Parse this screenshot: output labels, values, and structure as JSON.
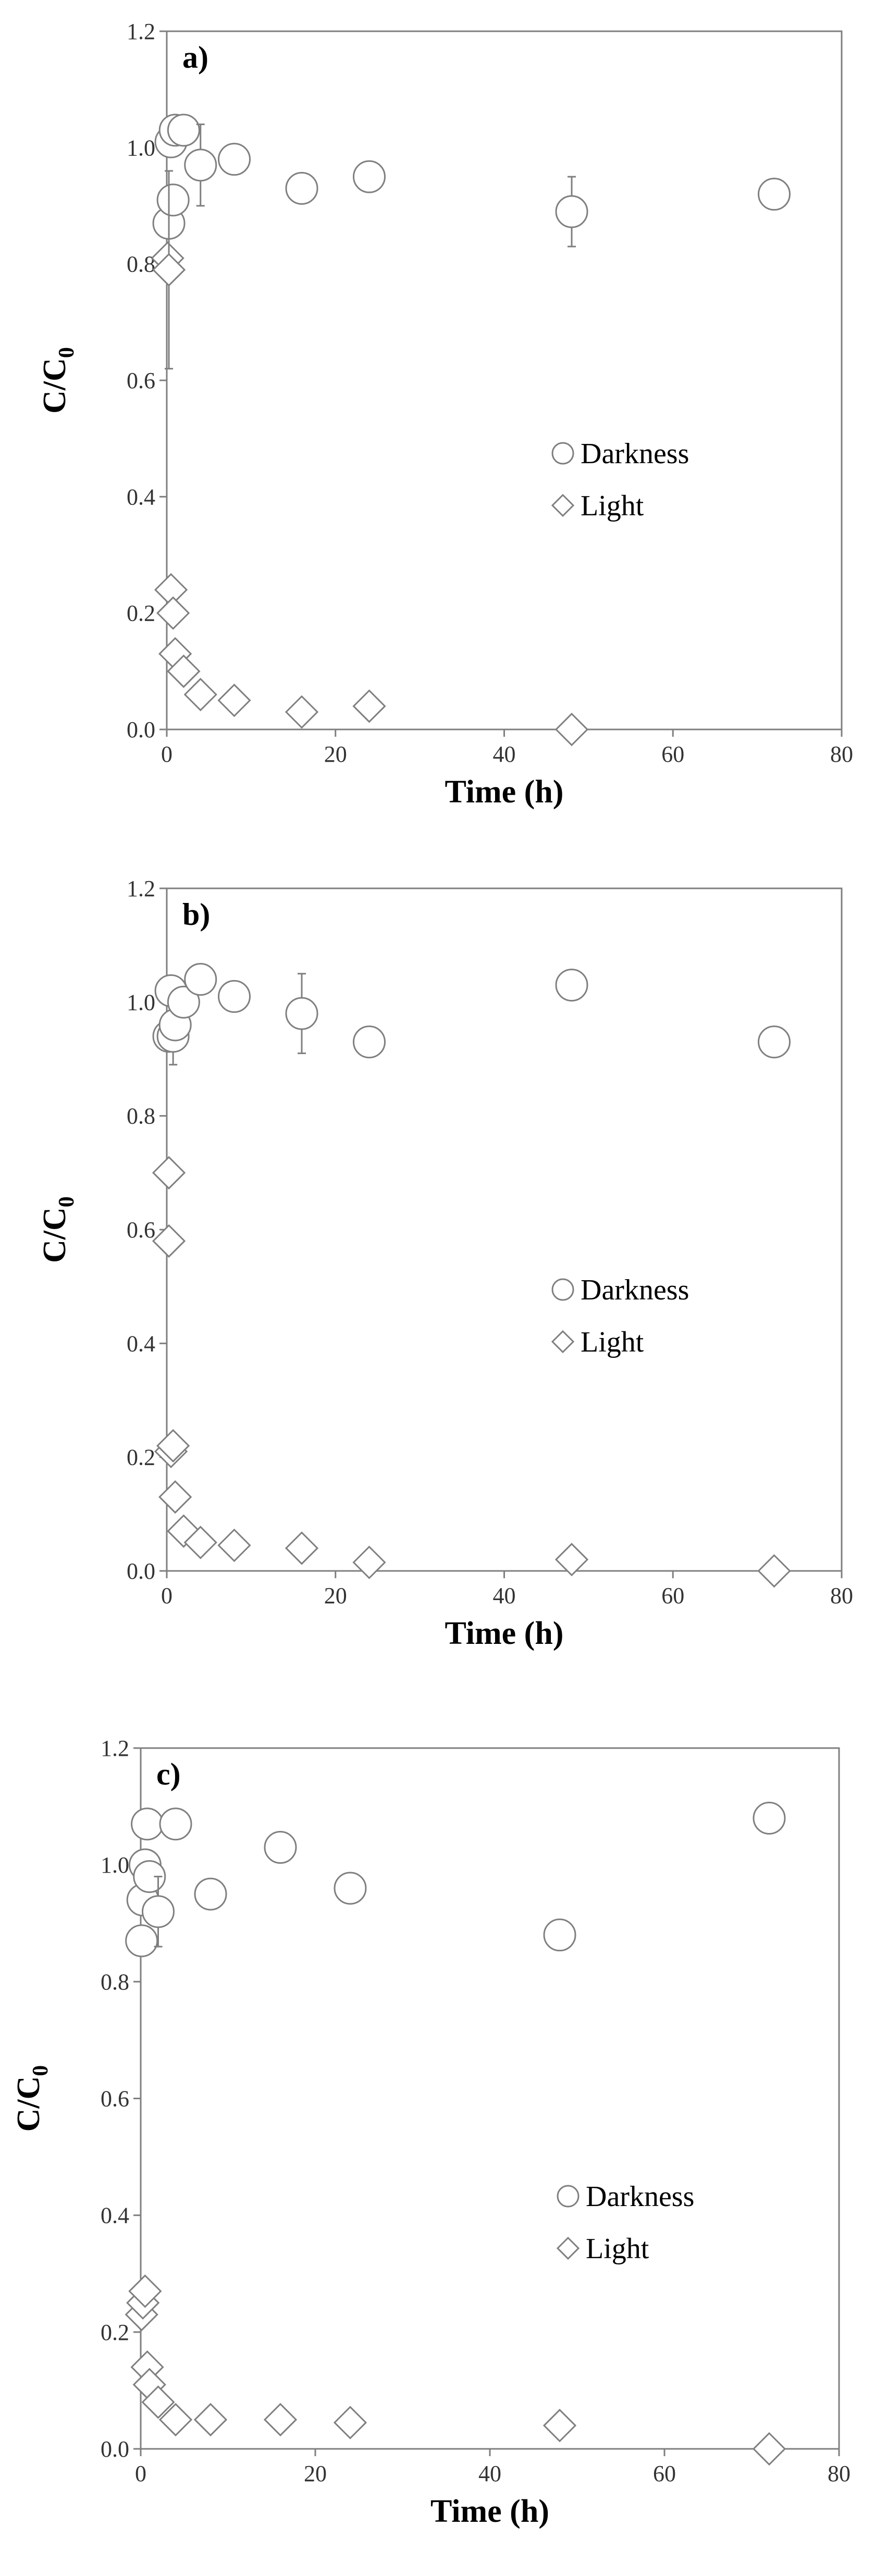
{
  "colors": {
    "marker_stroke": "#7f7f7f",
    "marker_fill": "#ffffff",
    "axis": "#7f7f7f",
    "text": "#000000"
  },
  "chart_data": [
    {
      "type": "scatter",
      "panel_label": "a)",
      "xlabel": "Time (h)",
      "ylabel_main": "C/C",
      "ylabel_sub": "0",
      "xlim": [
        0,
        80
      ],
      "ylim": [
        0,
        1.2
      ],
      "xticks": [
        "0",
        "20",
        "40",
        "60",
        "80"
      ],
      "yticks": [
        "0.0",
        "0.2",
        "0.4",
        "0.6",
        "0.8",
        "1.0",
        "1.2"
      ],
      "legend_position": "center-right",
      "grid": false,
      "series": [
        {
          "name": "Darkness",
          "marker": "circle",
          "points": [
            {
              "x": 0.25,
              "y": 0.87
            },
            {
              "x": 0.5,
              "y": 1.01
            },
            {
              "x": 0.75,
              "y": 0.91
            },
            {
              "x": 1,
              "y": 1.03
            },
            {
              "x": 2,
              "y": 1.03
            },
            {
              "x": 4,
              "y": 0.97,
              "err": 0.07
            },
            {
              "x": 8,
              "y": 0.98
            },
            {
              "x": 16,
              "y": 0.93
            },
            {
              "x": 24,
              "y": 0.95
            },
            {
              "x": 48,
              "y": 0.89,
              "err": 0.06
            },
            {
              "x": 72,
              "y": 0.92
            }
          ]
        },
        {
          "name": "Light",
          "marker": "diamond",
          "points": [
            {
              "x": 0.1,
              "y": 0.81
            },
            {
              "x": 0.25,
              "y": 0.79,
              "err": 0.17
            },
            {
              "x": 0.5,
              "y": 0.24
            },
            {
              "x": 0.75,
              "y": 0.2
            },
            {
              "x": 1,
              "y": 0.13
            },
            {
              "x": 2,
              "y": 0.1
            },
            {
              "x": 4,
              "y": 0.06
            },
            {
              "x": 8,
              "y": 0.05
            },
            {
              "x": 16,
              "y": 0.03
            },
            {
              "x": 24,
              "y": 0.04
            },
            {
              "x": 48,
              "y": 0.0
            }
          ]
        }
      ]
    },
    {
      "type": "scatter",
      "panel_label": "b)",
      "xlabel": "Time (h)",
      "ylabel_main": "C/C",
      "ylabel_sub": "0",
      "xlim": [
        0,
        80
      ],
      "ylim": [
        0,
        1.2
      ],
      "xticks": [
        "0",
        "20",
        "40",
        "60",
        "80"
      ],
      "yticks": [
        "0.0",
        "0.2",
        "0.4",
        "0.6",
        "0.8",
        "1.0",
        "1.2"
      ],
      "legend_position": "center-right",
      "grid": false,
      "series": [
        {
          "name": "Darkness",
          "marker": "circle",
          "points": [
            {
              "x": 0.25,
              "y": 0.94
            },
            {
              "x": 0.5,
              "y": 1.02
            },
            {
              "x": 0.75,
              "y": 0.94,
              "err": 0.05
            },
            {
              "x": 1,
              "y": 0.96
            },
            {
              "x": 2,
              "y": 1.0
            },
            {
              "x": 4,
              "y": 1.04
            },
            {
              "x": 8,
              "y": 1.01
            },
            {
              "x": 16,
              "y": 0.98,
              "err": 0.07
            },
            {
              "x": 24,
              "y": 0.93
            },
            {
              "x": 48,
              "y": 1.03
            },
            {
              "x": 72,
              "y": 0.93
            }
          ]
        },
        {
          "name": "Light",
          "marker": "diamond",
          "points": [
            {
              "x": 0.25,
              "y": 0.7
            },
            {
              "x": 0.25,
              "y": 0.58
            },
            {
              "x": 0.5,
              "y": 0.21
            },
            {
              "x": 0.75,
              "y": 0.22
            },
            {
              "x": 1,
              "y": 0.13
            },
            {
              "x": 2,
              "y": 0.07
            },
            {
              "x": 4,
              "y": 0.05
            },
            {
              "x": 8,
              "y": 0.045
            },
            {
              "x": 16,
              "y": 0.04
            },
            {
              "x": 24,
              "y": 0.015
            },
            {
              "x": 48,
              "y": 0.02
            },
            {
              "x": 72,
              "y": 0.0
            }
          ]
        }
      ]
    },
    {
      "type": "scatter",
      "panel_label": "c)",
      "xlabel": "Time (h)",
      "ylabel_main": "C/C",
      "ylabel_sub": "0",
      "xlim": [
        0,
        80
      ],
      "ylim": [
        0,
        1.2
      ],
      "xticks": [
        "0",
        "20",
        "40",
        "60",
        "80"
      ],
      "yticks": [
        "0.0",
        "0.2",
        "0.4",
        "0.6",
        "0.8",
        "1.0",
        "1.2"
      ],
      "legend_position": "center-right",
      "grid": false,
      "series": [
        {
          "name": "Darkness",
          "marker": "circle",
          "points": [
            {
              "x": 0.1,
              "y": 0.87
            },
            {
              "x": 0.25,
              "y": 0.94
            },
            {
              "x": 0.5,
              "y": 1.0
            },
            {
              "x": 0.75,
              "y": 1.07
            },
            {
              "x": 1,
              "y": 0.98
            },
            {
              "x": 2,
              "y": 0.92,
              "err": 0.06
            },
            {
              "x": 4,
              "y": 1.07
            },
            {
              "x": 8,
              "y": 0.95
            },
            {
              "x": 16,
              "y": 1.03
            },
            {
              "x": 24,
              "y": 0.96
            },
            {
              "x": 48,
              "y": 0.88
            },
            {
              "x": 72,
              "y": 1.08
            }
          ]
        },
        {
          "name": "Light",
          "marker": "diamond",
          "points": [
            {
              "x": 0.1,
              "y": 0.23
            },
            {
              "x": 0.25,
              "y": 0.25
            },
            {
              "x": 0.5,
              "y": 0.27
            },
            {
              "x": 0.75,
              "y": 0.14
            },
            {
              "x": 1,
              "y": 0.11
            },
            {
              "x": 2,
              "y": 0.08
            },
            {
              "x": 4,
              "y": 0.05
            },
            {
              "x": 8,
              "y": 0.05
            },
            {
              "x": 16,
              "y": 0.05
            },
            {
              "x": 24,
              "y": 0.045
            },
            {
              "x": 48,
              "y": 0.04
            },
            {
              "x": 72,
              "y": 0.0
            }
          ]
        }
      ]
    }
  ]
}
